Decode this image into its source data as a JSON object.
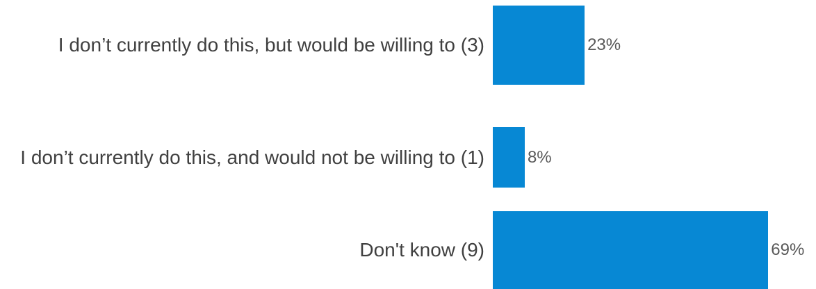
{
  "chart_data": {
    "type": "bar",
    "orientation": "horizontal",
    "categories": [
      "I don’t currently do this, but would be willing to (3)",
      "I don’t currently do this, and would not be willing to (1)",
      "Don't know (9)"
    ],
    "values": [
      23,
      8,
      69
    ],
    "value_labels": [
      "23%",
      "8%",
      "69%"
    ],
    "color": "#0788d4",
    "xlim": [
      0,
      70
    ]
  }
}
